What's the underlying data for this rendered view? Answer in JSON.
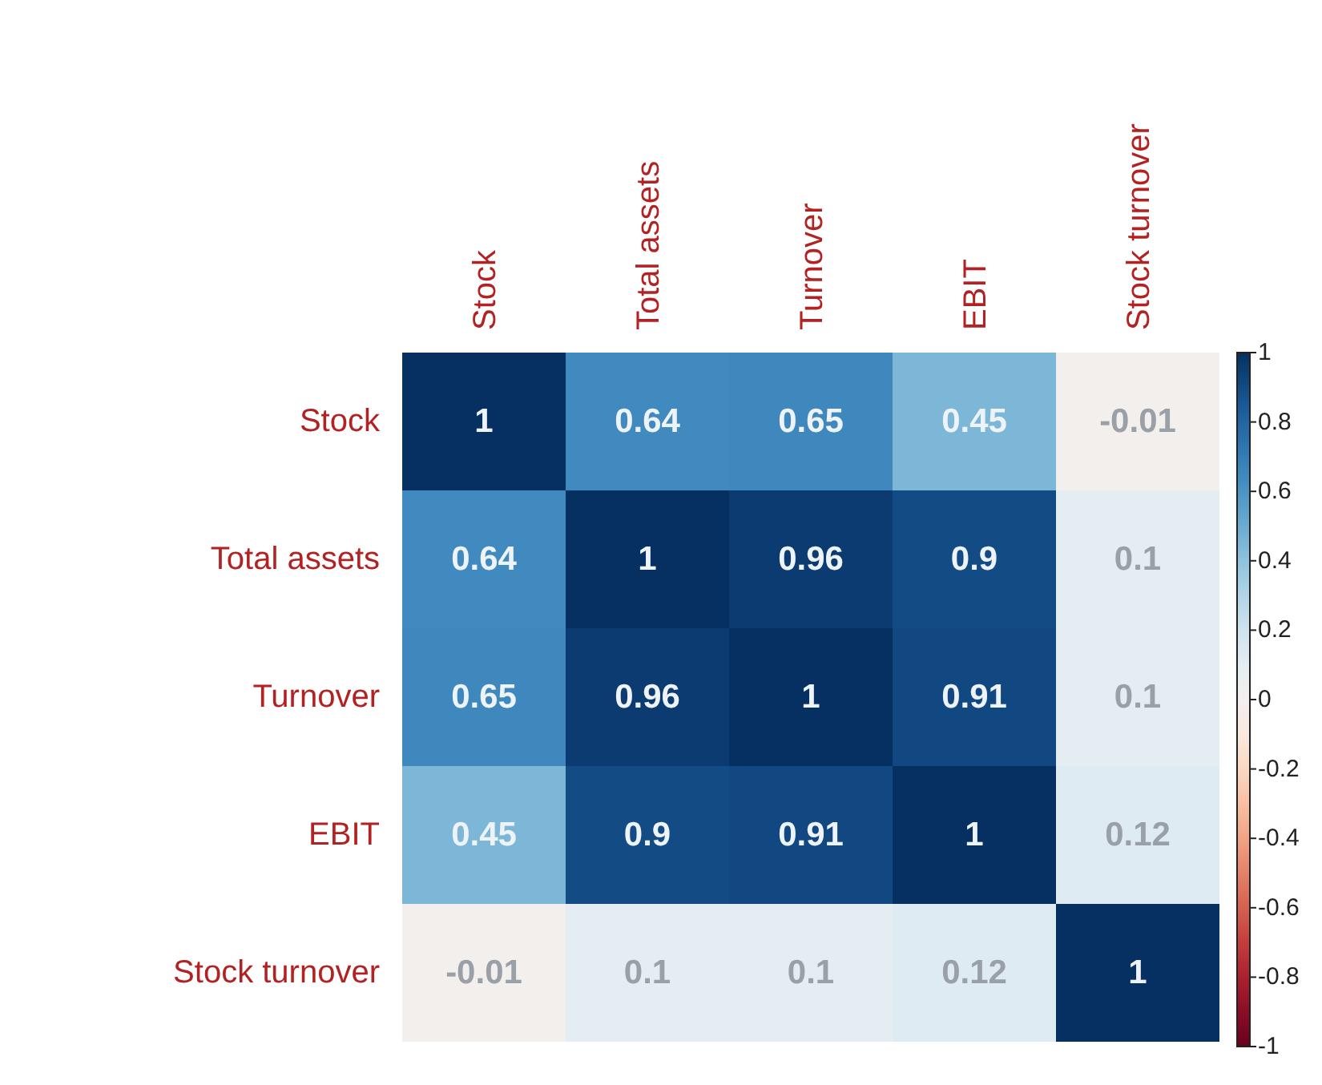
{
  "chart_data": {
    "type": "heatmap",
    "categories": [
      "Stock",
      "Total assets",
      "Turnover",
      "EBIT",
      "Stock turnover"
    ],
    "y_categories": [
      "Stock",
      "Total assets",
      "Turnover",
      "EBIT",
      "Stock turnover"
    ],
    "cells": [
      [
        1,
        0.64,
        0.65,
        0.45,
        -0.01
      ],
      [
        0.64,
        1,
        0.96,
        0.9,
        0.1
      ],
      [
        0.65,
        0.96,
        1,
        0.91,
        0.1
      ],
      [
        0.45,
        0.9,
        0.91,
        1,
        0.12
      ],
      [
        -0.01,
        0.1,
        0.1,
        0.12,
        1
      ]
    ],
    "data_labels": true,
    "clim": [
      -1,
      1
    ],
    "cticks": [
      -1,
      -0.8,
      -0.6,
      -0.4,
      -0.2,
      0,
      0.2,
      0.4,
      0.6,
      0.8,
      1
    ]
  }
}
